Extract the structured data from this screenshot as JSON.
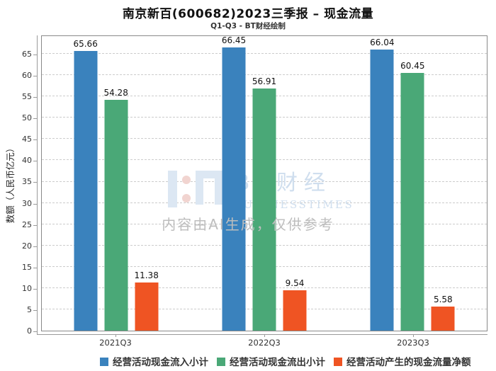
{
  "header": {
    "title": "南京新百(600682)2023三季报 – 现金流量",
    "subtitle": "Q1-Q3 - BT财经绘制"
  },
  "chart_data": {
    "type": "bar",
    "title": "南京新百(600682)2023三季报 – 现金流量",
    "subtitle": "Q1-Q3 - BT财经绘制",
    "categories": [
      "2021Q3",
      "2022Q3",
      "2023Q3"
    ],
    "series": [
      {
        "name": "经营活动现金流入小计",
        "color": "#3a82bd",
        "values": [
          65.66,
          66.45,
          66.04
        ]
      },
      {
        "name": "经营活动现金流出小计",
        "color": "#4aa877",
        "values": [
          54.28,
          56.91,
          60.45
        ]
      },
      {
        "name": "经营活动产生的现金流量净额",
        "color": "#ef5423",
        "values": [
          11.38,
          9.54,
          5.58
        ]
      }
    ],
    "xlabel": "",
    "ylabel": "数额（人民币亿元）",
    "yticks": [
      0,
      5,
      10,
      15,
      20,
      25,
      30,
      35,
      40,
      45,
      50,
      55,
      60,
      65
    ],
    "ylim": [
      0,
      69.5
    ],
    "grid": "horizontal-dashed",
    "legend_position": "bottom",
    "value_labels": true
  },
  "watermark": {
    "brand_cn": "BT财经",
    "brand_en": "BUSINESSTIMES",
    "disclaimer": "内容由AI生成，仅供参考"
  }
}
